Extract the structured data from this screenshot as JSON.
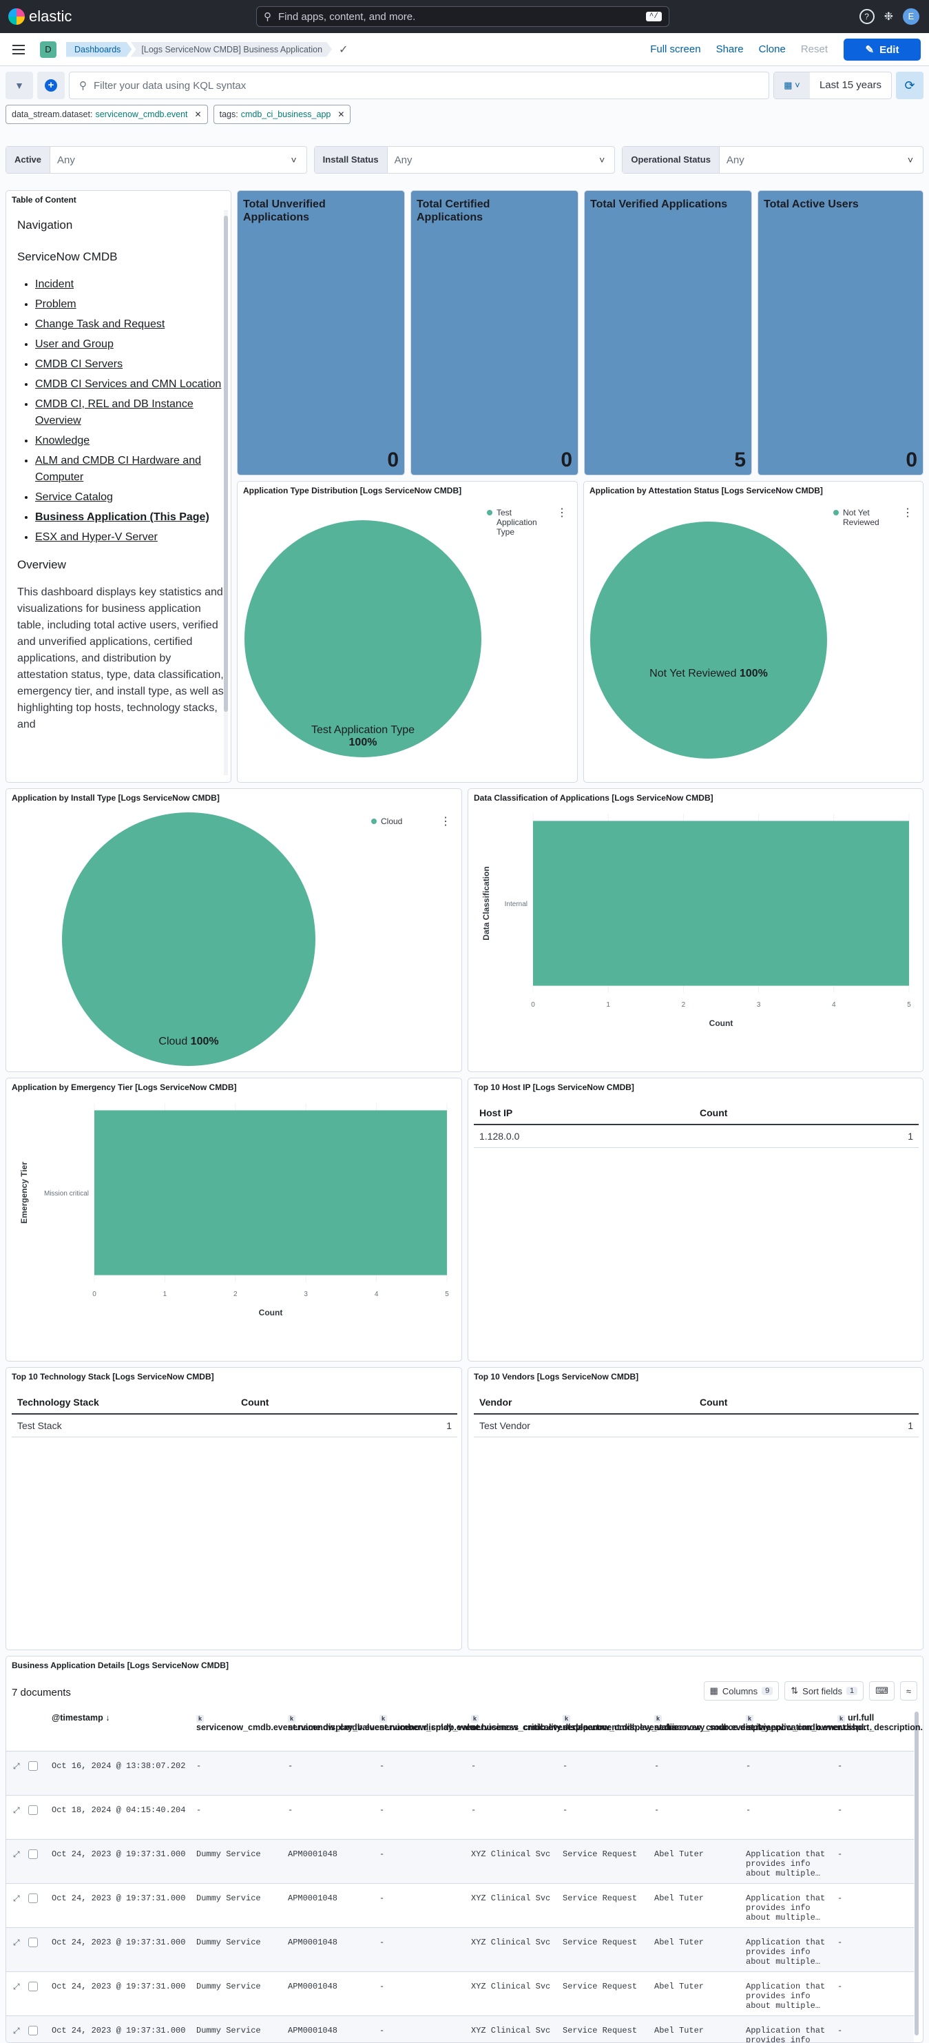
{
  "topbar": {
    "brand": "elastic",
    "search_placeholder": "Find apps, content, and more.",
    "search_shortcut": "^/",
    "avatar_letter": "E"
  },
  "nav": {
    "space_letter": "D",
    "breadcrumb_root": "Dashboards",
    "breadcrumb_current": "[Logs ServiceNow CMDB] Business Application",
    "full_screen": "Full screen",
    "share": "Share",
    "clone": "Clone",
    "reset": "Reset",
    "edit": "Edit"
  },
  "query": {
    "placeholder": "Filter your data using KQL syntax",
    "time_range": "Last 15 years"
  },
  "filters": [
    {
      "key": "data_stream.dataset:",
      "value": "servicenow_cmdb.event"
    },
    {
      "key": "tags:",
      "value": "cmdb_ci_business_app"
    }
  ],
  "controls": [
    {
      "label": "Active",
      "value": "Any"
    },
    {
      "label": "Install Status",
      "value": "Any"
    },
    {
      "label": "Operational Status",
      "value": "Any"
    }
  ],
  "toc": {
    "panel_title": "Table of Content",
    "nav_heading": "Navigation",
    "section_heading": "ServiceNow CMDB",
    "links": [
      "Incident",
      "Problem",
      "Change Task and Request",
      "User and Group",
      "CMDB CI Servers",
      "CMDB CI Services and CMN Location",
      "CMDB CI, REL and DB Instance Overview",
      "Knowledge",
      "ALM and CMDB CI Hardware and Computer",
      "Service Catalog",
      "Business Application (This Page)",
      "ESX and Hyper-V Server"
    ],
    "overview_heading": "Overview",
    "overview_text": "This dashboard displays key statistics and visualizations for business application table, including total active users, verified and unverified applications, certified applications, and distribution by attestation status, type, data classification, emergency tier, and install type, as well as highlighting top hosts, technology stacks, and"
  },
  "metrics": [
    {
      "title": "Total Unverified Applications",
      "value": "0"
    },
    {
      "title": "Total Certified Applications",
      "value": "0"
    },
    {
      "title": "Total Verified Applications",
      "value": "5"
    },
    {
      "title": "Total Active Users",
      "value": "0"
    }
  ],
  "pie_type": {
    "title": "Application Type Distribution [Logs ServiceNow CMDB]",
    "legend": "Test Application Type",
    "label": "Test Application Type",
    "percent": "100%"
  },
  "pie_attest": {
    "title": "Application by Attestation Status [Logs ServiceNow CMDB]",
    "legend": "Not Yet Reviewed",
    "label": "Not Yet Reviewed",
    "percent": "100%"
  },
  "pie_install": {
    "title": "Application by Install Type [Logs ServiceNow CMDB]",
    "legend": "Cloud",
    "label": "Cloud",
    "percent": "100%"
  },
  "bar_class": {
    "title": "Data Classification of Applications [Logs ServiceNow CMDB]",
    "ylabel": "Data Classification",
    "xlabel": "Count"
  },
  "bar_tier": {
    "title": "Application by Emergency Tier [Logs ServiceNow CMDB]",
    "ylabel": "Emergency Tier",
    "xlabel": "Count"
  },
  "chart_data": [
    {
      "type": "pie",
      "title": "Application Type Distribution [Logs ServiceNow CMDB]",
      "categories": [
        "Test Application Type"
      ],
      "values": [
        100
      ],
      "legend": "top-right"
    },
    {
      "type": "pie",
      "title": "Application by Attestation Status [Logs ServiceNow CMDB]",
      "categories": [
        "Not Yet Reviewed"
      ],
      "values": [
        100
      ],
      "legend": "top-right"
    },
    {
      "type": "pie",
      "title": "Application by Install Type [Logs ServiceNow CMDB]",
      "categories": [
        "Cloud"
      ],
      "values": [
        100
      ],
      "legend": "top-right"
    },
    {
      "type": "bar",
      "orientation": "horizontal",
      "title": "Data Classification of Applications [Logs ServiceNow CMDB]",
      "categories": [
        "Internal"
      ],
      "values": [
        5
      ],
      "xlabel": "Count",
      "ylabel": "Data Classification",
      "xlim": [
        0,
        5
      ],
      "ticks": [
        "0",
        "1",
        "2",
        "3",
        "4",
        "5"
      ],
      "grid": true
    },
    {
      "type": "bar",
      "orientation": "horizontal",
      "title": "Application by Emergency Tier [Logs ServiceNow CMDB]",
      "categories": [
        "Mission critical"
      ],
      "values": [
        5
      ],
      "xlabel": "Count",
      "ylabel": "Emergency Tier",
      "xlim": [
        0,
        5
      ],
      "ticks": [
        "0",
        "1",
        "2",
        "3",
        "4",
        "5"
      ],
      "grid": true
    }
  ],
  "tables": {
    "host": {
      "title": "Top 10 Host IP [Logs ServiceNow CMDB]",
      "col1": "Host IP",
      "col2": "Count",
      "row1": "1.128.0.0",
      "row1_count": "1"
    },
    "tech": {
      "title": "Top 10 Technology Stack [Logs ServiceNow CMDB]",
      "col1": "Technology Stack",
      "col2": "Count",
      "row1": "Test Stack",
      "row1_count": "1"
    },
    "vendor": {
      "title": "Top 10 Vendors [Logs ServiceNow CMDB]",
      "col1": "Vendor",
      "col2": "Count",
      "row1": "Test Vendor",
      "row1_count": "1"
    }
  },
  "details": {
    "title": "Business Application Details [Logs ServiceNow CMDB]",
    "doc_count": "7 documents",
    "columns_label": "Columns",
    "columns_count": "9",
    "sort_label": "Sort fields",
    "sort_count": "1",
    "headers": [
      "@timestamp",
      "servicenow_cmdb.event.name.display_value",
      "servicenow_cmdb.event.number.display_value",
      "servicenow_cmdb.event.business_criticality.displa…",
      "servicenow_cmdb.event.department.display_value",
      "servicenow_cmdb.event.discovery_source.display_…",
      "servicenow_cmdb.event.it_application_owner.displ…",
      "servicenow_cmdb.event.short_description.display_…",
      "url.full"
    ],
    "rows": [
      [
        "Oct 16, 2024 @ 13:38:07.202",
        "-",
        "-",
        "-",
        "-",
        "-",
        "-",
        "-",
        "-"
      ],
      [
        "Oct 18, 2024 @ 04:15:40.204",
        "-",
        "-",
        "-",
        "-",
        "-",
        "-",
        "-",
        "-"
      ],
      [
        "Oct 24, 2023 @ 19:37:31.000",
        "Dummy Service",
        "APM0001048",
        "-",
        "XYZ Clinical Svc",
        "Service Request",
        "Abel Tuter",
        "Application that provides info about multiple…",
        "-"
      ],
      [
        "Oct 24, 2023 @ 19:37:31.000",
        "Dummy Service",
        "APM0001048",
        "-",
        "XYZ Clinical Svc",
        "Service Request",
        "Abel Tuter",
        "Application that provides info about multiple…",
        "-"
      ],
      [
        "Oct 24, 2023 @ 19:37:31.000",
        "Dummy Service",
        "APM0001048",
        "-",
        "XYZ Clinical Svc",
        "Service Request",
        "Abel Tuter",
        "Application that provides info about multiple…",
        "-"
      ],
      [
        "Oct 24, 2023 @ 19:37:31.000",
        "Dummy Service",
        "APM0001048",
        "-",
        "XYZ Clinical Svc",
        "Service Request",
        "Abel Tuter",
        "Application that provides info about multiple…",
        "-"
      ],
      [
        "Oct 24, 2023 @ 19:37:31.000",
        "Dummy Service",
        "APM0001048",
        "-",
        "XYZ Clinical Svc",
        "Service Request",
        "Abel Tuter",
        "Application that provides info",
        "-"
      ]
    ]
  },
  "colors": {
    "accent": "#0b64dd",
    "metric_bg": "#6092c0",
    "series": "#54b399",
    "topbar": "#25282f"
  }
}
